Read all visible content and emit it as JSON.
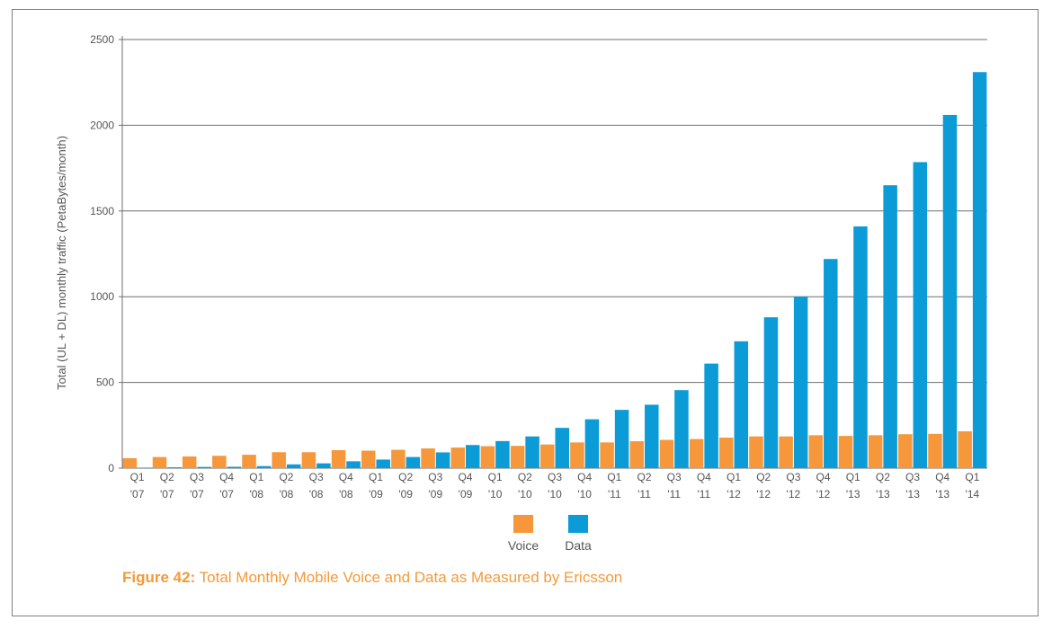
{
  "caption": {
    "prefix": "Figure 42:",
    "text": "Total Monthly Mobile Voice and Data as Measured by Ericsson"
  },
  "colors": {
    "voice": "#f5973a",
    "data": "#0b9bd6",
    "grid": "#6f6f6f",
    "caption": "#f39a3a"
  },
  "chart_data": {
    "type": "bar",
    "ylabel": "Total (UL + DL) monthly traffic (PetaBytes/month)",
    "ylim": [
      0,
      2500
    ],
    "yticks": [
      0,
      500,
      1000,
      1500,
      2000,
      2500
    ],
    "grid": true,
    "legend": "bottom-center",
    "categories": [
      [
        "Q1",
        "'07"
      ],
      [
        "Q2",
        "'07"
      ],
      [
        "Q3",
        "'07"
      ],
      [
        "Q4",
        "'07"
      ],
      [
        "Q1",
        "'08"
      ],
      [
        "Q2",
        "'08"
      ],
      [
        "Q3",
        "'08"
      ],
      [
        "Q4",
        "'08"
      ],
      [
        "Q1",
        "'09"
      ],
      [
        "Q2",
        "'09"
      ],
      [
        "Q3",
        "'09"
      ],
      [
        "Q4",
        "'09"
      ],
      [
        "Q1",
        "'10"
      ],
      [
        "Q2",
        "'10"
      ],
      [
        "Q3",
        "'10"
      ],
      [
        "Q4",
        "'10"
      ],
      [
        "Q1",
        "'11"
      ],
      [
        "Q2",
        "'11"
      ],
      [
        "Q3",
        "'11"
      ],
      [
        "Q4",
        "'11"
      ],
      [
        "Q1",
        "'12"
      ],
      [
        "Q2",
        "'12"
      ],
      [
        "Q3",
        "'12"
      ],
      [
        "Q4",
        "'12"
      ],
      [
        "Q1",
        "'13"
      ],
      [
        "Q2",
        "'13"
      ],
      [
        "Q3",
        "'13"
      ],
      [
        "Q4",
        "'13"
      ],
      [
        "Q1",
        "'14"
      ]
    ],
    "series": [
      {
        "name": "Voice",
        "values": [
          58,
          65,
          68,
          72,
          78,
          93,
          93,
          105,
          102,
          107,
          115,
          120,
          128,
          130,
          138,
          150,
          150,
          157,
          165,
          170,
          178,
          185,
          185,
          192,
          188,
          192,
          198,
          200,
          215
        ]
      },
      {
        "name": "Data",
        "values": [
          3,
          5,
          7,
          8,
          12,
          22,
          28,
          40,
          50,
          65,
          92,
          135,
          158,
          185,
          235,
          285,
          340,
          370,
          455,
          610,
          740,
          880,
          1000,
          1220,
          1410,
          1650,
          1785,
          2060,
          2310
        ]
      }
    ]
  }
}
